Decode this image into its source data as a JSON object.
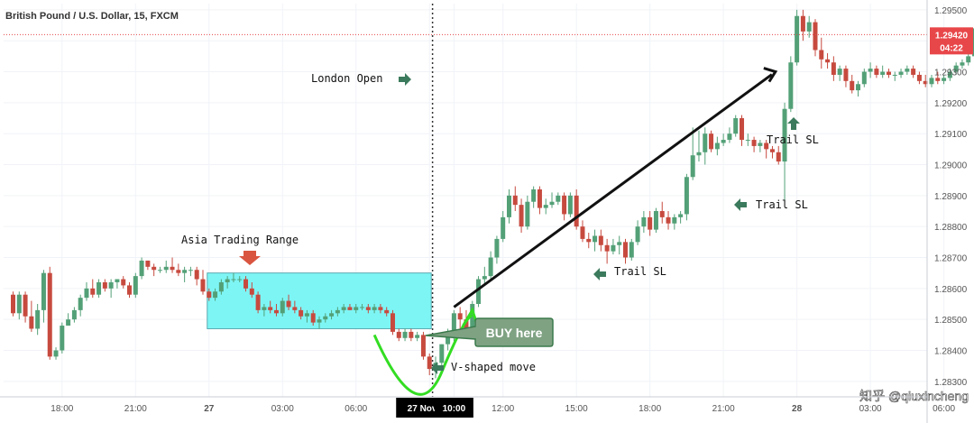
{
  "chart_data": {
    "type": "candlestick",
    "title": "British Pound / U.S. Dollar, 15, FXCM",
    "colors": {
      "up": "#53a077",
      "down": "#c74a3f",
      "asia_box": "#7ef5f5",
      "v_curve": "#33dd22",
      "arrow": "#111111",
      "label_arrow": "#3b7a5c",
      "price_badge": "#e8474a"
    },
    "y_axis": {
      "range": [
        1.2825,
        1.2952
      ],
      "ticks": [
        "1.29500",
        "1.29400",
        "1.29300",
        "1.29200",
        "1.29100",
        "1.29000",
        "1.28900",
        "1.28800",
        "1.28700",
        "1.28600",
        "1.28500",
        "1.28400",
        "1.28300"
      ]
    },
    "x_axis": {
      "ticks": [
        {
          "label": "18:00",
          "i": 8
        },
        {
          "label": "21:00",
          "i": 20
        },
        {
          "label": "27",
          "i": 32
        },
        {
          "label": "03:00",
          "i": 44
        },
        {
          "label": "06:00",
          "i": 56
        },
        {
          "label": "27 Nov '19",
          "i": 68,
          "highlight": true
        },
        {
          "label": "10:00",
          "i": 72,
          "highlight": true
        },
        {
          "label": "12:00",
          "i": 80
        },
        {
          "label": "15:00",
          "i": 92
        },
        {
          "label": "18:00",
          "i": 104
        },
        {
          "label": "21:00",
          "i": 116
        },
        {
          "label": "28",
          "i": 128
        },
        {
          "label": "03:00",
          "i": 140
        },
        {
          "label": "06:00",
          "i": 152
        }
      ]
    },
    "price_badge": {
      "price": "1.29420",
      "timer": "04:22"
    },
    "candles": [
      [
        1.2858,
        1.2859,
        1.2851,
        1.2852
      ],
      [
        1.2852,
        1.2859,
        1.285,
        1.2858
      ],
      [
        1.2858,
        1.2859,
        1.2849,
        1.2851
      ],
      [
        1.2851,
        1.2856,
        1.2846,
        1.2847
      ],
      [
        1.2847,
        1.2855,
        1.2845,
        1.2853
      ],
      [
        1.2853,
        1.2866,
        1.2849,
        1.2865
      ],
      [
        1.2865,
        1.2867,
        1.2837,
        1.2838
      ],
      [
        1.2838,
        1.2841,
        1.2837,
        1.284
      ],
      [
        1.284,
        1.2849,
        1.2839,
        1.2848
      ],
      [
        1.2848,
        1.2852,
        1.2848,
        1.285
      ],
      [
        1.285,
        1.2854,
        1.2849,
        1.2853
      ],
      [
        1.2853,
        1.2858,
        1.2851,
        1.2857
      ],
      [
        1.2857,
        1.2862,
        1.2856,
        1.286
      ],
      [
        1.286,
        1.2863,
        1.2857,
        1.2858
      ],
      [
        1.2858,
        1.2863,
        1.2857,
        1.2862
      ],
      [
        1.2862,
        1.2863,
        1.2859,
        1.286
      ],
      [
        1.286,
        1.2863,
        1.2857,
        1.2862
      ],
      [
        1.2862,
        1.2863,
        1.286,
        1.2863
      ],
      [
        1.2863,
        1.2864,
        1.286,
        1.2861
      ],
      [
        1.2861,
        1.2862,
        1.2857,
        1.2858
      ],
      [
        1.2858,
        1.2865,
        1.2857,
        1.2864
      ],
      [
        1.2864,
        1.287,
        1.2863,
        1.2869
      ],
      [
        1.2869,
        1.2869,
        1.2866,
        1.2867
      ],
      [
        1.2867,
        1.2868,
        1.2864,
        1.2866
      ],
      [
        1.2866,
        1.2867,
        1.2865,
        1.2866
      ],
      [
        1.2866,
        1.2869,
        1.2865,
        1.2867
      ],
      [
        1.2867,
        1.287,
        1.2865,
        1.2866
      ],
      [
        1.2866,
        1.2868,
        1.2864,
        1.2865
      ],
      [
        1.2865,
        1.2867,
        1.2862,
        1.2866
      ],
      [
        1.2866,
        1.2867,
        1.2864,
        1.2866
      ],
      [
        1.2866,
        1.2867,
        1.2861,
        1.2863
      ],
      [
        1.2863,
        1.2866,
        1.2858,
        1.2859
      ],
      [
        1.2859,
        1.286,
        1.2856,
        1.2857
      ],
      [
        1.2857,
        1.286,
        1.2856,
        1.2859
      ],
      [
        1.2859,
        1.2863,
        1.2858,
        1.2862
      ],
      [
        1.2862,
        1.2864,
        1.286,
        1.2863
      ],
      [
        1.2863,
        1.2865,
        1.2862,
        1.2863
      ],
      [
        1.2863,
        1.2864,
        1.2862,
        1.2863
      ],
      [
        1.2863,
        1.2864,
        1.2859,
        1.286
      ],
      [
        1.286,
        1.2862,
        1.2857,
        1.2858
      ],
      [
        1.2858,
        1.2859,
        1.2852,
        1.2853
      ],
      [
        1.2853,
        1.2855,
        1.2851,
        1.2854
      ],
      [
        1.2854,
        1.2856,
        1.2852,
        1.2853
      ],
      [
        1.2853,
        1.2855,
        1.2851,
        1.2852
      ],
      [
        1.2852,
        1.2857,
        1.2851,
        1.2856
      ],
      [
        1.2856,
        1.2858,
        1.2853,
        1.2854
      ],
      [
        1.2854,
        1.2856,
        1.2852,
        1.2853
      ],
      [
        1.2853,
        1.2854,
        1.285,
        1.2851
      ],
      [
        1.2851,
        1.2853,
        1.2849,
        1.2852
      ],
      [
        1.2852,
        1.2853,
        1.2848,
        1.2849
      ],
      [
        1.2849,
        1.2851,
        1.2847,
        1.285
      ],
      [
        1.285,
        1.2852,
        1.2849,
        1.2851
      ],
      [
        1.2851,
        1.2853,
        1.285,
        1.2852
      ],
      [
        1.2852,
        1.2854,
        1.2851,
        1.2853
      ],
      [
        1.2853,
        1.2855,
        1.2852,
        1.2854
      ],
      [
        1.2854,
        1.2855,
        1.2853,
        1.2853
      ],
      [
        1.2853,
        1.2855,
        1.2852,
        1.2854
      ],
      [
        1.2854,
        1.2855,
        1.2853,
        1.2854
      ],
      [
        1.2854,
        1.2855,
        1.2852,
        1.2853
      ],
      [
        1.2853,
        1.2855,
        1.2852,
        1.2854
      ],
      [
        1.2854,
        1.2855,
        1.2852,
        1.2853
      ],
      [
        1.2853,
        1.2854,
        1.2851,
        1.2852
      ],
      [
        1.2852,
        1.2853,
        1.2845,
        1.2846
      ],
      [
        1.2846,
        1.2847,
        1.2843,
        1.2844
      ],
      [
        1.2844,
        1.2847,
        1.2843,
        1.2846
      ],
      [
        1.2846,
        1.2847,
        1.2843,
        1.2844
      ],
      [
        1.2844,
        1.2846,
        1.2843,
        1.2845
      ],
      [
        1.2845,
        1.2846,
        1.2837,
        1.2838
      ],
      [
        1.2838,
        1.2839,
        1.2832,
        1.2834
      ],
      [
        1.2834,
        1.2838,
        1.2831,
        1.2836
      ],
      [
        1.2836,
        1.2842,
        1.2835,
        1.2842
      ],
      [
        1.2842,
        1.2847,
        1.284,
        1.2845
      ],
      [
        1.2845,
        1.2853,
        1.2843,
        1.2852
      ],
      [
        1.2852,
        1.2854,
        1.2847,
        1.285
      ],
      [
        1.285,
        1.2853,
        1.2846,
        1.2847
      ],
      [
        1.2847,
        1.2856,
        1.2846,
        1.2855
      ],
      [
        1.2855,
        1.2864,
        1.2854,
        1.2863
      ],
      [
        1.2863,
        1.2867,
        1.2861,
        1.2864
      ],
      [
        1.2864,
        1.2872,
        1.2863,
        1.287
      ],
      [
        1.287,
        1.2877,
        1.2868,
        1.2876
      ],
      [
        1.2876,
        1.2885,
        1.2875,
        1.2883
      ],
      [
        1.2883,
        1.2892,
        1.2881,
        1.289
      ],
      [
        1.289,
        1.2893,
        1.2885,
        1.2887
      ],
      [
        1.2887,
        1.2889,
        1.2878,
        1.288
      ],
      [
        1.288,
        1.289,
        1.2879,
        1.2888
      ],
      [
        1.2888,
        1.2893,
        1.2886,
        1.2892
      ],
      [
        1.2892,
        1.2893,
        1.2884,
        1.2886
      ],
      [
        1.2886,
        1.2889,
        1.2884,
        1.2887
      ],
      [
        1.2887,
        1.2891,
        1.2886,
        1.2888
      ],
      [
        1.2888,
        1.2891,
        1.2887,
        1.289
      ],
      [
        1.289,
        1.2891,
        1.2882,
        1.2884
      ],
      [
        1.2884,
        1.2891,
        1.2883,
        1.289
      ],
      [
        1.289,
        1.2892,
        1.2879,
        1.288
      ],
      [
        1.288,
        1.2882,
        1.2875,
        1.2876
      ],
      [
        1.2876,
        1.2878,
        1.2873,
        1.2875
      ],
      [
        1.2875,
        1.2879,
        1.2872,
        1.2877
      ],
      [
        1.2877,
        1.2879,
        1.2872,
        1.2874
      ],
      [
        1.2874,
        1.2876,
        1.2868,
        1.2872
      ],
      [
        1.2872,
        1.2876,
        1.2871,
        1.2874
      ],
      [
        1.2874,
        1.2877,
        1.2871,
        1.2875
      ],
      [
        1.2875,
        1.2876,
        1.2868,
        1.287
      ],
      [
        1.287,
        1.2876,
        1.2869,
        1.2875
      ],
      [
        1.2875,
        1.2882,
        1.2874,
        1.288
      ],
      [
        1.288,
        1.2885,
        1.2878,
        1.2883
      ],
      [
        1.2883,
        1.2885,
        1.2877,
        1.2879
      ],
      [
        1.2879,
        1.2886,
        1.2878,
        1.2885
      ],
      [
        1.2885,
        1.2888,
        1.2881,
        1.2883
      ],
      [
        1.2883,
        1.2885,
        1.2879,
        1.2881
      ],
      [
        1.2881,
        1.2884,
        1.2879,
        1.2883
      ],
      [
        1.2883,
        1.2885,
        1.2881,
        1.2884
      ],
      [
        1.2884,
        1.2897,
        1.2882,
        1.2896
      ],
      [
        1.2896,
        1.2912,
        1.2895,
        1.2903
      ],
      [
        1.2903,
        1.2911,
        1.2901,
        1.2904
      ],
      [
        1.2904,
        1.2912,
        1.29,
        1.291
      ],
      [
        1.291,
        1.2911,
        1.2904,
        1.2905
      ],
      [
        1.2905,
        1.2909,
        1.2903,
        1.2907
      ],
      [
        1.2907,
        1.291,
        1.2906,
        1.2908
      ],
      [
        1.2908,
        1.2912,
        1.2907,
        1.291
      ],
      [
        1.291,
        1.2916,
        1.2909,
        1.2915
      ],
      [
        1.2915,
        1.2916,
        1.2906,
        1.2908
      ],
      [
        1.2908,
        1.291,
        1.2906,
        1.2908
      ],
      [
        1.2908,
        1.2909,
        1.2904,
        1.2906
      ],
      [
        1.2906,
        1.2908,
        1.2904,
        1.2907
      ],
      [
        1.2907,
        1.2908,
        1.2902,
        1.2905
      ],
      [
        1.2905,
        1.2906,
        1.2902,
        1.2904
      ],
      [
        1.2904,
        1.2906,
        1.29,
        1.2901
      ],
      [
        1.2901,
        1.292,
        1.2888,
        1.2918
      ],
      [
        1.2918,
        1.2935,
        1.2917,
        1.2933
      ],
      [
        1.2933,
        1.295,
        1.2932,
        1.2948
      ],
      [
        1.2948,
        1.295,
        1.294,
        1.2943
      ],
      [
        1.2943,
        1.2948,
        1.2941,
        1.2946
      ],
      [
        1.2946,
        1.2947,
        1.2935,
        1.2937
      ],
      [
        1.2937,
        1.2941,
        1.2931,
        1.2934
      ],
      [
        1.2934,
        1.2936,
        1.2931,
        1.2933
      ],
      [
        1.2933,
        1.2935,
        1.2927,
        1.2929
      ],
      [
        1.2929,
        1.2932,
        1.2927,
        1.2931
      ],
      [
        1.2931,
        1.2932,
        1.2925,
        1.2927
      ],
      [
        1.2927,
        1.2929,
        1.2923,
        1.2924
      ],
      [
        1.2924,
        1.2927,
        1.2922,
        1.2926
      ],
      [
        1.2926,
        1.2931,
        1.2925,
        1.293
      ],
      [
        1.293,
        1.2933,
        1.2928,
        1.2931
      ],
      [
        1.2931,
        1.2932,
        1.2928,
        1.2929
      ],
      [
        1.2929,
        1.2932,
        1.2928,
        1.293
      ],
      [
        1.293,
        1.2931,
        1.2928,
        1.2929
      ],
      [
        1.2929,
        1.293,
        1.2927,
        1.2929
      ],
      [
        1.2929,
        1.2931,
        1.2928,
        1.293
      ],
      [
        1.293,
        1.2932,
        1.2929,
        1.2931
      ],
      [
        1.2931,
        1.2932,
        1.2928,
        1.2929
      ],
      [
        1.2929,
        1.293,
        1.2926,
        1.2927
      ],
      [
        1.2927,
        1.2929,
        1.2925,
        1.2926
      ],
      [
        1.2926,
        1.2929,
        1.2925,
        1.2928
      ],
      [
        1.2928,
        1.293,
        1.2926,
        1.2927
      ],
      [
        1.2927,
        1.2929,
        1.2926,
        1.2928
      ],
      [
        1.2928,
        1.2931,
        1.2927,
        1.293
      ],
      [
        1.293,
        1.2933,
        1.2929,
        1.2932
      ],
      [
        1.2932,
        1.2934,
        1.2931,
        1.2933
      ],
      [
        1.2933,
        1.2936,
        1.2932,
        1.2935
      ],
      [
        1.2935,
        1.2945,
        1.2934,
        1.2944
      ],
      [
        1.2944,
        1.295,
        1.294,
        1.2942
      ]
    ],
    "annotations": [
      {
        "id": "asia",
        "text": "Asia Trading Range",
        "box": {
          "i0": 32,
          "i1": 68,
          "y_top": 1.2865,
          "y_bottom": 1.2847
        }
      },
      {
        "id": "london",
        "text": "London Open",
        "vline_i": 68.5
      },
      {
        "id": "buy",
        "text": "BUY here"
      },
      {
        "id": "vshape",
        "text": "V-shaped move"
      },
      {
        "id": "trail1",
        "text": "Trail SL"
      },
      {
        "id": "trail2",
        "text": "Trail SL"
      },
      {
        "id": "trail3",
        "text": "Trail SL"
      }
    ],
    "watermark": "知乎 @qiuxincheng"
  }
}
